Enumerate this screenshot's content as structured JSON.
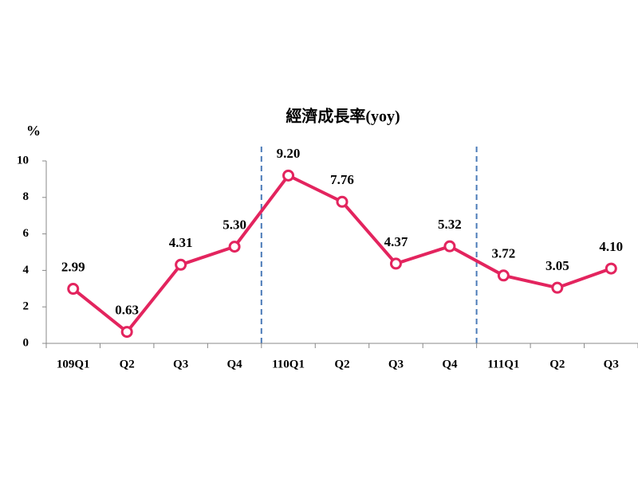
{
  "chart_data": {
    "type": "line",
    "title": "經濟成長率(yoy)",
    "y_label": "%",
    "categories": [
      "109Q1",
      "Q2",
      "Q3",
      "Q4",
      "110Q1",
      "Q2",
      "Q3",
      "Q4",
      "111Q1",
      "Q2",
      "Q3"
    ],
    "series": [
      {
        "name": "經濟成長率",
        "color": "#e3245e",
        "values": [
          2.99,
          0.63,
          4.31,
          5.3,
          9.2,
          7.76,
          4.37,
          5.32,
          3.72,
          3.05,
          4.1
        ],
        "value_labels": [
          "2.99",
          "0.63",
          "4.31",
          "5.30",
          "9.20",
          "7.76",
          "4.37",
          "5.32",
          "3.72",
          "3.05",
          "4.10"
        ]
      }
    ],
    "ylim": [
      0,
      10
    ],
    "yticks": [
      0,
      2,
      4,
      6,
      8,
      10
    ],
    "grid": false,
    "legend": false
  }
}
